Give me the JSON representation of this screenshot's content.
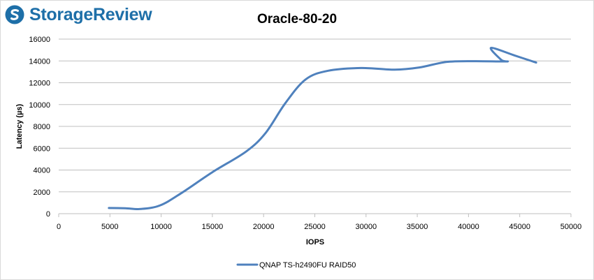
{
  "brand": {
    "name": "StorageReview"
  },
  "colors": {
    "series": "#4f81bd",
    "grid": "#bfbfbf",
    "brand": "#1e6fa8"
  },
  "chart_data": {
    "type": "line",
    "title": "Oracle-80-20",
    "xlabel": "IOPS",
    "ylabel": "Latency (µs)",
    "xlim": [
      0,
      50000
    ],
    "ylim": [
      0,
      16000
    ],
    "xticks": [
      "0",
      "5000",
      "10000",
      "15000",
      "20000",
      "25000",
      "30000",
      "35000",
      "40000",
      "45000",
      "50000"
    ],
    "yticks": [
      "0",
      "2000",
      "4000",
      "6000",
      "8000",
      "10000",
      "12000",
      "14000",
      "16000"
    ],
    "grid": true,
    "legend_position": "bottom",
    "series": [
      {
        "name": "QNAP TS-h2490FU RAID50",
        "points": [
          [
            4900,
            520
          ],
          [
            6500,
            500
          ],
          [
            8000,
            430
          ],
          [
            9900,
            760
          ],
          [
            12000,
            1900
          ],
          [
            15000,
            3800
          ],
          [
            18300,
            5700
          ],
          [
            20200,
            7400
          ],
          [
            22100,
            10100
          ],
          [
            24100,
            12300
          ],
          [
            26300,
            13100
          ],
          [
            29500,
            13350
          ],
          [
            32800,
            13200
          ],
          [
            35200,
            13400
          ],
          [
            37800,
            13900
          ],
          [
            40500,
            13980
          ],
          [
            43700,
            13950
          ],
          [
            43200,
            14100
          ],
          [
            42200,
            15200
          ],
          [
            44500,
            14500
          ],
          [
            46600,
            13850
          ]
        ]
      }
    ]
  }
}
